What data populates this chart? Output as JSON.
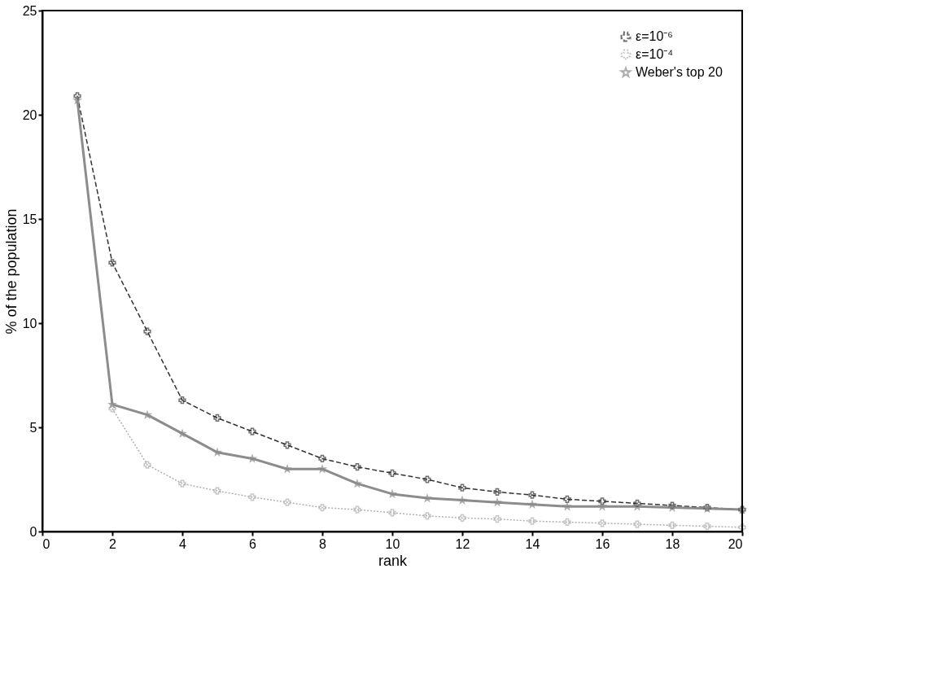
{
  "chart_data": {
    "type": "line",
    "xlabel": "rank",
    "ylabel": "% of the population",
    "x": [
      1,
      2,
      3,
      4,
      5,
      6,
      7,
      8,
      9,
      10,
      11,
      12,
      13,
      14,
      15,
      16,
      17,
      18,
      19,
      20
    ],
    "xlim": [
      0,
      20
    ],
    "xticks": [
      0,
      2,
      4,
      6,
      8,
      10,
      12,
      14,
      16,
      18,
      20
    ],
    "ylim": [
      0,
      25
    ],
    "yticks": [
      0,
      5,
      10,
      15,
      20,
      25
    ],
    "grid": false,
    "legend": "top right",
    "series": [
      {
        "name": "ε=10⁻⁶",
        "color": "#333333",
        "line_style": "dashed",
        "marker": "cross",
        "values": [
          20.9,
          12.9,
          9.6,
          6.3,
          5.45,
          4.8,
          4.15,
          3.5,
          3.1,
          2.8,
          2.5,
          2.1,
          1.9,
          1.75,
          1.55,
          1.45,
          1.35,
          1.25,
          1.15,
          1.05
        ]
      },
      {
        "name": "ε=10⁻⁴",
        "color": "#b0b0b0",
        "line_style": "dotted",
        "marker": "cross",
        "values": [
          null,
          5.9,
          3.2,
          2.3,
          1.95,
          1.65,
          1.4,
          1.15,
          1.05,
          0.9,
          0.75,
          0.65,
          0.6,
          0.5,
          0.45,
          0.4,
          0.35,
          0.3,
          0.25,
          0.2
        ]
      },
      {
        "name": "Weber's top 20",
        "color": "#8c8c8c",
        "line_style": "solid",
        "marker": "star",
        "values": [
          20.7,
          6.1,
          5.6,
          4.7,
          3.8,
          3.5,
          3.0,
          3.0,
          2.3,
          1.8,
          1.6,
          1.5,
          1.4,
          1.3,
          1.2,
          1.2,
          1.2,
          1.15,
          1.1,
          1.05
        ]
      }
    ]
  }
}
